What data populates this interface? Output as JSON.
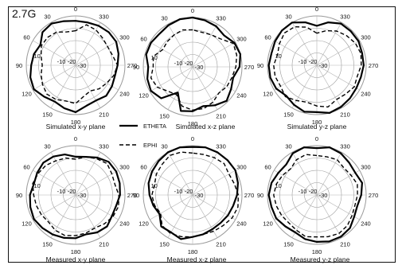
{
  "frequency_label": "2.7G",
  "legend": {
    "solid": "ETHETA",
    "dashed": "EPHI"
  },
  "chart_data": [
    {
      "type": "polar",
      "title": "Simulated x-y plane",
      "angle_labels": [
        "0",
        "30",
        "60",
        "90",
        "120",
        "150",
        "180",
        "210",
        "240",
        "270",
        "300",
        "330"
      ],
      "radial_labels": [
        "10",
        "-10",
        "-20",
        "-30"
      ],
      "radial_range_dB": [
        -30,
        10
      ],
      "angle_step_deg": 30,
      "series": [
        {
          "name": "ETHETA",
          "style": "solid",
          "r": [
            6,
            7,
            9,
            8,
            3,
            5,
            6,
            8,
            9,
            6,
            4,
            6,
            8,
            4,
            3,
            5,
            4,
            3,
            4,
            6,
            8,
            8,
            7,
            6
          ]
        },
        {
          "name": "EPHI",
          "style": "dashed",
          "r": [
            -2,
            -2,
            1,
            2,
            2,
            -1,
            -3,
            -1,
            1,
            3,
            2,
            0,
            1,
            -4,
            -6,
            -3,
            -1,
            2,
            4,
            1,
            0,
            1,
            3,
            4
          ]
        }
      ]
    },
    {
      "type": "polar",
      "title": "Simulated x-z plane",
      "angle_labels": [
        "0",
        "30",
        "60",
        "90",
        "120",
        "150",
        "180",
        "210",
        "240",
        "270",
        "300",
        "330"
      ],
      "radial_labels": [
        "10",
        "-10",
        "-20",
        "-30"
      ],
      "radial_range_dB": [
        -30,
        10
      ],
      "angle_step_deg": 30,
      "series": [
        {
          "name": "ETHETA",
          "style": "solid",
          "r": [
            10,
            10,
            9,
            8,
            9,
            9,
            6,
            8,
            9,
            6,
            -6,
            7,
            6,
            3,
            6,
            9,
            6,
            4,
            8,
            10,
            9,
            6,
            8,
            9
          ]
        },
        {
          "name": "EPHI",
          "style": "dashed",
          "r": [
            0,
            1,
            0,
            -1,
            -2,
            3,
            2,
            5,
            3,
            -2,
            -4,
            3,
            5,
            5,
            3,
            0,
            2,
            3,
            5,
            7,
            8,
            2,
            0,
            -1
          ]
        }
      ]
    },
    {
      "type": "polar",
      "title": "Simulated y-z plane",
      "angle_labels": [
        "0",
        "30",
        "60",
        "90",
        "120",
        "150",
        "180",
        "210",
        "240",
        "270",
        "300",
        "330"
      ],
      "radial_labels": [
        "10",
        "-10",
        "-20",
        "-30"
      ],
      "radial_range_dB": [
        -30,
        10
      ],
      "angle_step_deg": 30,
      "series": [
        {
          "name": "ETHETA",
          "style": "solid",
          "r": [
            2,
            6,
            10,
            10,
            9,
            8,
            9,
            9,
            8,
            5,
            7,
            9,
            8,
            10,
            9,
            8,
            7,
            7,
            8,
            8,
            9,
            9,
            9,
            6
          ]
        },
        {
          "name": "EPHI",
          "style": "dashed",
          "r": [
            -4,
            2,
            6,
            7,
            5,
            3,
            5,
            5,
            4,
            6,
            3,
            1,
            3,
            5,
            2,
            3,
            5,
            4,
            6,
            7,
            6,
            4,
            2,
            -1
          ]
        }
      ]
    },
    {
      "type": "polar",
      "title": "Measured x-y plane",
      "angle_labels": [
        "0",
        "30",
        "60",
        "90",
        "120",
        "150",
        "180",
        "210",
        "240",
        "270",
        "300",
        "330"
      ],
      "radial_labels": [
        "10",
        "-10",
        "-20",
        "-30"
      ],
      "radial_range_dB": [
        -30,
        10
      ],
      "angle_step_deg": 30,
      "series": [
        {
          "name": "ETHETA",
          "style": "solid",
          "r": [
            1,
            4,
            6,
            7,
            6,
            5,
            7,
            8,
            9,
            8,
            7,
            6,
            5,
            3,
            5,
            6,
            4,
            4,
            6,
            7,
            8,
            8,
            5,
            2
          ]
        },
        {
          "name": "EPHI",
          "style": "dashed",
          "r": [
            -1,
            1,
            2,
            4,
            5,
            6,
            4,
            3,
            2,
            1,
            3,
            4,
            3,
            2,
            1,
            3,
            5,
            6,
            5,
            3,
            4,
            6,
            4,
            2
          ]
        }
      ]
    },
    {
      "type": "polar",
      "title": "Measured x-z plane",
      "angle_labels": [
        "0",
        "30",
        "60",
        "90",
        "120",
        "150",
        "180",
        "210",
        "240",
        "270",
        "300",
        "330"
      ],
      "radial_labels": [
        "10",
        "-10",
        "-20",
        "-30"
      ],
      "radial_range_dB": [
        -30,
        10
      ],
      "angle_step_deg": 30,
      "series": [
        {
          "name": "ETHETA",
          "style": "solid",
          "r": [
            9,
            10,
            10,
            9,
            8,
            7,
            5,
            3,
            1,
            6,
            5,
            7,
            4,
            3,
            2,
            2,
            3,
            4,
            6,
            8,
            10,
            10,
            10,
            10
          ]
        },
        {
          "name": "EPHI",
          "style": "dashed",
          "r": [
            4,
            6,
            7,
            5,
            4,
            2,
            3,
            2,
            0,
            5,
            6,
            5,
            4,
            3,
            4,
            5,
            7,
            8,
            7,
            5,
            4,
            6,
            5,
            4
          ]
        }
      ]
    },
    {
      "type": "polar",
      "title": "Measured y-z plane",
      "angle_labels": [
        "0",
        "30",
        "60",
        "90",
        "120",
        "150",
        "180",
        "210",
        "240",
        "270",
        "300",
        "330"
      ],
      "radial_labels": [
        "10",
        "-10",
        "-20",
        "-30"
      ],
      "radial_range_dB": [
        -30,
        10
      ],
      "angle_step_deg": 30,
      "series": [
        {
          "name": "ETHETA",
          "style": "solid",
          "r": [
            8,
            10,
            9,
            5,
            6,
            8,
            9,
            8,
            8,
            6,
            5,
            7,
            8,
            9,
            9,
            8,
            5,
            4,
            6,
            8,
            6,
            7,
            9,
            10
          ]
        },
        {
          "name": "EPHI",
          "style": "dashed",
          "r": [
            2,
            4,
            3,
            0,
            2,
            4,
            5,
            4,
            3,
            2,
            3,
            5,
            4,
            5,
            6,
            5,
            3,
            2,
            3,
            4,
            2,
            1,
            3,
            2
          ]
        }
      ]
    }
  ]
}
